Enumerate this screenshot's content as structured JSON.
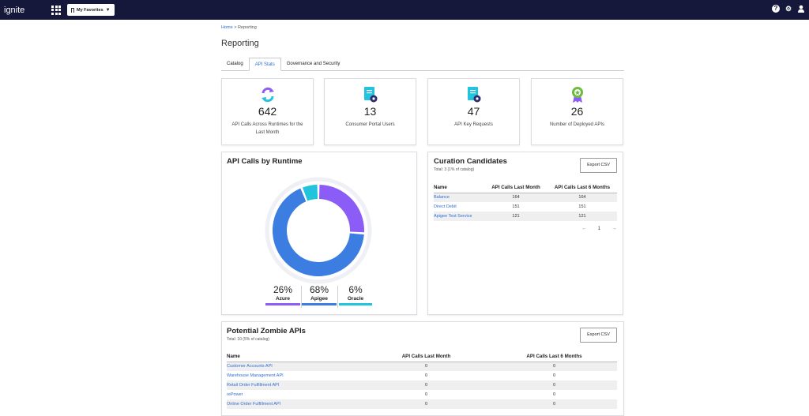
{
  "app": {
    "brand": "ignite",
    "favorites_label": "My Favorites"
  },
  "breadcrumb": {
    "home": "Home",
    "sep": ">",
    "current": "Reporting"
  },
  "page_title": "Reporting",
  "tabs": [
    {
      "label": "Catalog",
      "active": false
    },
    {
      "label": "API Stats",
      "active": true
    },
    {
      "label": "Governance and Security",
      "active": false
    }
  ],
  "stats": [
    {
      "value": "642",
      "label": "API Calls Across Runtimes for the Last Month",
      "icon": "sync-arrows-icon"
    },
    {
      "value": "13",
      "label": "Consumer Portal Users",
      "icon": "document-eye-icon"
    },
    {
      "value": "47",
      "label": "API Key Requests",
      "icon": "document-eye-icon"
    },
    {
      "value": "26",
      "label": "Number of Deployed APIs",
      "icon": "award-ribbon-icon"
    }
  ],
  "runtime": {
    "title": "API Calls by Runtime",
    "segments": [
      {
        "name": "Azure",
        "pct": "26%",
        "value": 26,
        "color": "#8b5cf6"
      },
      {
        "name": "Apigee",
        "pct": "68%",
        "value": 68,
        "color": "#3b7de0"
      },
      {
        "name": "Oracle",
        "pct": "6%",
        "value": 6,
        "color": "#22c3dd"
      }
    ]
  },
  "curation": {
    "title": "Curation Candidates",
    "subtitle": "Total: 3 (1% of catalog)",
    "export_label": "Export CSV",
    "columns": [
      "Name",
      "API Calls Last Month",
      "API Calls Last 6 Months"
    ],
    "rows": [
      [
        "Balance",
        "164",
        "164"
      ],
      [
        "Direct Debit",
        "151",
        "151"
      ],
      [
        "Apigee Test Service",
        "121",
        "121"
      ]
    ],
    "page": "1"
  },
  "zombie": {
    "title": "Potential Zombie APIs",
    "subtitle": "Total: 10 (5% of catalog)",
    "export_label": "Export CSV",
    "columns": [
      "Name",
      "API Calls Last Month",
      "API Calls Last 6 Months"
    ],
    "rows": [
      [
        "Customer Accounts API",
        "0",
        "0"
      ],
      [
        "Warehouse Management API",
        "0",
        "0"
      ],
      [
        "Retail Order Fulfillment API",
        "0",
        "0"
      ],
      [
        "rePower",
        "0",
        "0"
      ],
      [
        "Online Order Fulfillment API",
        "0",
        "0"
      ]
    ]
  },
  "colors": {
    "topbar": "#15183a",
    "link": "#2f6fd6",
    "purple": "#8b5cf6",
    "blue": "#3b7de0",
    "cyan": "#22c3dd"
  }
}
